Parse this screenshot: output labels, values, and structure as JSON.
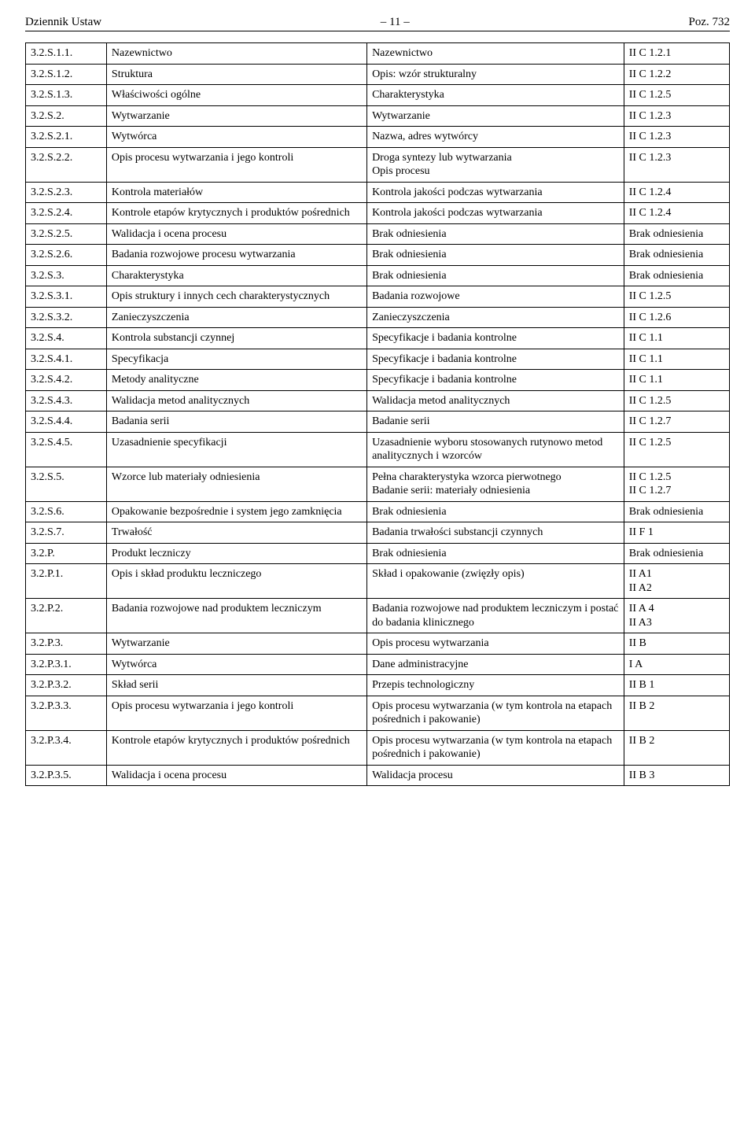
{
  "header": {
    "left": "Dziennik Ustaw",
    "center": "– 11 –",
    "right": "Poz. 732"
  },
  "rows": [
    {
      "code": "3.2.S.1.1.",
      "a": "Nazewnictwo",
      "b": "Nazewnictwo",
      "c": "II C 1.2.1"
    },
    {
      "code": "3.2.S.1.2.",
      "a": "Struktura",
      "b": "Opis: wzór strukturalny",
      "c": "II C 1.2.2"
    },
    {
      "code": "3.2.S.1.3.",
      "a": "Właściwości ogólne",
      "b": "Charakterystyka",
      "c": "II C 1.2.5"
    },
    {
      "code": "3.2.S.2.",
      "a": "Wytwarzanie",
      "b": "Wytwarzanie",
      "c": "II C 1.2.3"
    },
    {
      "code": "3.2.S.2.1.",
      "a": "Wytwórca",
      "b": "Nazwa, adres wytwórcy",
      "c": "II C 1.2.3"
    },
    {
      "code": "3.2.S.2.2.",
      "a": "Opis procesu wytwarzania i jego kontroli",
      "b": "Droga syntezy lub wytwarzania\nOpis procesu",
      "c": "II C 1.2.3"
    },
    {
      "code": "3.2.S.2.3.",
      "a": "Kontrola materiałów",
      "b": "Kontrola jakości podczas wytwarzania",
      "c": "II C 1.2.4"
    },
    {
      "code": "3.2.S.2.4.",
      "a": "Kontrole etapów krytycznych i produktów pośrednich",
      "b": "Kontrola jakości podczas wytwarzania",
      "c": "II C 1.2.4"
    },
    {
      "code": "3.2.S.2.5.",
      "a": "Walidacja i ocena procesu",
      "b": "Brak odniesienia",
      "c": "Brak odniesienia"
    },
    {
      "code": "3.2.S.2.6.",
      "a": "Badania rozwojowe procesu wytwarzania",
      "b": "Brak odniesienia",
      "c": "Brak odniesienia"
    },
    {
      "code": "3.2.S.3.",
      "a": "Charakterystyka",
      "b": "Brak odniesienia",
      "c": "Brak odniesienia"
    },
    {
      "code": "3.2.S.3.1.",
      "a": "Opis struktury i innych cech charakterystycznych",
      "b": "Badania rozwojowe",
      "c": "II C 1.2.5"
    },
    {
      "code": "3.2.S.3.2.",
      "a": "Zanieczyszczenia",
      "b": "Zanieczyszczenia",
      "c": "II C 1.2.6"
    },
    {
      "code": "3.2.S.4.",
      "a": "Kontrola substancji czynnej",
      "b": "Specyfikacje i badania kontrolne",
      "c": "II C 1.1"
    },
    {
      "code": "3.2.S.4.1.",
      "a": "Specyfikacja",
      "b": "Specyfikacje i badania kontrolne",
      "c": "II C 1.1"
    },
    {
      "code": "3.2.S.4.2.",
      "a": "Metody analityczne",
      "b": "Specyfikacje i badania kontrolne",
      "c": "II C 1.1"
    },
    {
      "code": "3.2.S.4.3.",
      "a": "Walidacja metod analitycznych",
      "b": "Walidacja metod analitycznych",
      "c": "II C 1.2.5"
    },
    {
      "code": "3.2.S.4.4.",
      "a": "Badania serii",
      "b": "Badanie serii",
      "c": "II C 1.2.7"
    },
    {
      "code": "3.2.S.4.5.",
      "a": "Uzasadnienie specyfikacji",
      "b": "Uzasadnienie wyboru stosowanych rutynowo metod analitycznych i wzorców",
      "c": "II C 1.2.5"
    },
    {
      "code": "3.2.S.5.",
      "a": "Wzorce lub materiały odniesienia",
      "b": "Pełna charakterystyka wzorca pierwotnego\nBadanie serii: materiały odniesienia",
      "c": "II C 1.2.5\nII C 1.2.7"
    },
    {
      "code": "3.2.S.6.",
      "a": "Opakowanie bezpośrednie i system jego zamknięcia",
      "b": "Brak odniesienia",
      "c": "Brak odniesienia"
    },
    {
      "code": "3.2.S.7.",
      "a": "Trwałość",
      "b": "Badania trwałości substancji czynnych",
      "c": "II F 1"
    },
    {
      "code": "3.2.P.",
      "a": "Produkt leczniczy",
      "b": "Brak odniesienia",
      "c": "Brak odniesienia"
    },
    {
      "code": "3.2.P.1.",
      "a": "Opis i skład produktu leczniczego",
      "b": "Skład i opakowanie (zwięzły opis)",
      "c": "II A1\nII A2"
    },
    {
      "code": "3.2.P.2.",
      "a": "Badania rozwojowe nad produktem leczniczym",
      "b": "Badania rozwojowe nad produktem leczniczym i postać do badania klinicznego",
      "c": "II A 4\nII A3"
    },
    {
      "code": "3.2.P.3.",
      "a": "Wytwarzanie",
      "b": "Opis procesu wytwarzania",
      "c": "II B"
    },
    {
      "code": "3.2.P.3.1.",
      "a": "Wytwórca",
      "b": "Dane administracyjne",
      "c": "I A"
    },
    {
      "code": "3.2.P.3.2.",
      "a": "Skład serii",
      "b": "Przepis technologiczny",
      "c": "II B 1"
    },
    {
      "code": "3.2.P.3.3.",
      "a": "Opis procesu wytwarzania i jego kontroli",
      "b": "Opis procesu wytwarzania (w tym kontrola na etapach pośrednich i pakowanie)",
      "c": "II B 2"
    },
    {
      "code": "3.2.P.3.4.",
      "a": "Kontrole etapów krytycznych i produktów pośrednich",
      "b": "Opis procesu wytwarzania (w tym kontrola na etapach pośrednich i pakowanie)",
      "c": "II B 2"
    },
    {
      "code": "3.2.P.3.5.",
      "a": "Walidacja i ocena procesu",
      "b": "Walidacja procesu",
      "c": "II B 3"
    }
  ]
}
